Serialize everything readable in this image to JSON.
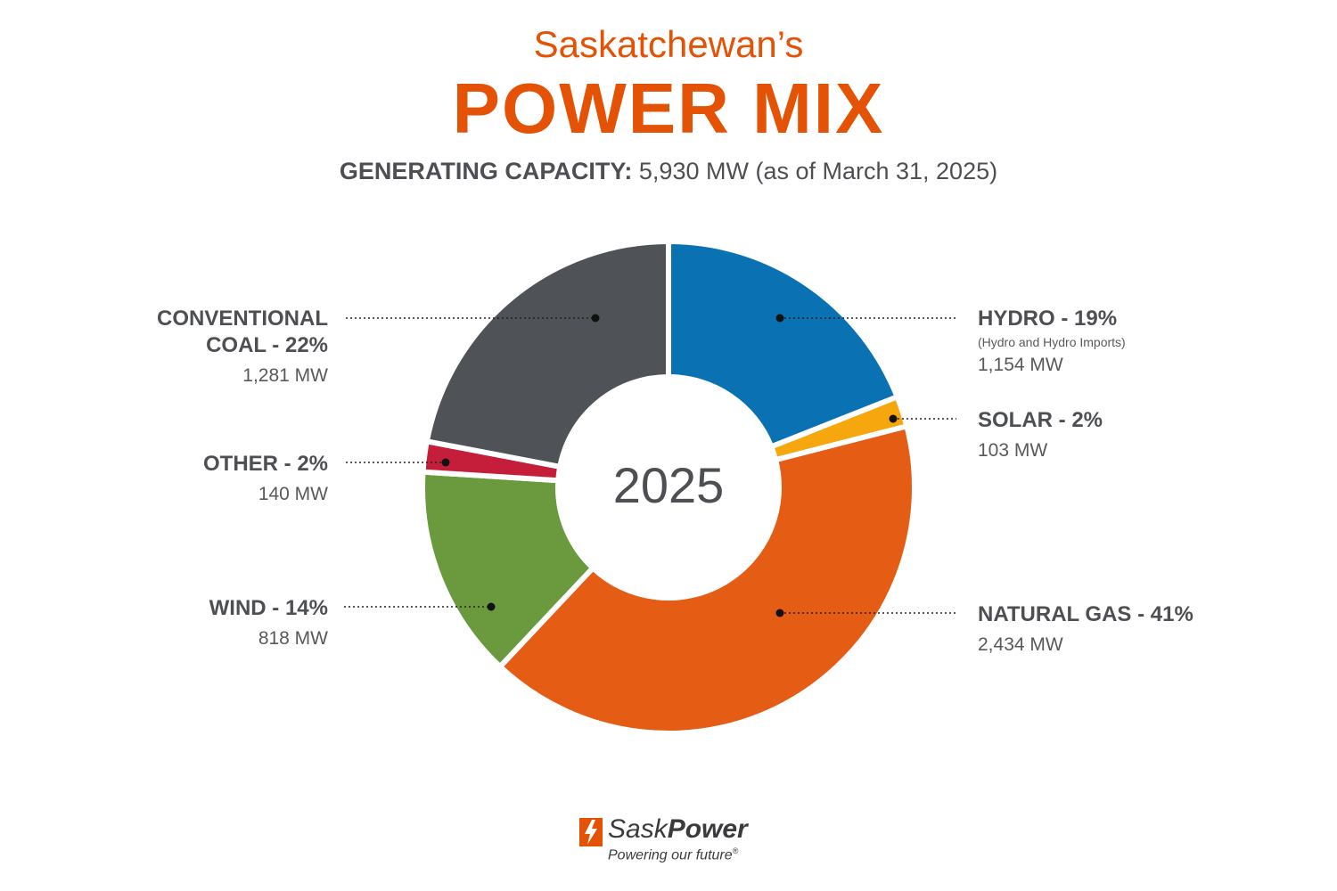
{
  "header": {
    "title_small": "Saskatchewan’s",
    "title_big": "POWER MIX",
    "subtitle_bold": "GENERATING CAPACITY:",
    "subtitle_rest": " 5,930 MW (as of March 31, 2025)"
  },
  "center_label": "2025",
  "labels": {
    "coal": {
      "name1": "CONVENTIONAL",
      "name2": "COAL - 22%",
      "mw": "1,281 MW"
    },
    "other": {
      "name": "OTHER - 2%",
      "mw": "140 MW"
    },
    "wind": {
      "name": "WIND - 14%",
      "mw": "818 MW"
    },
    "hydro": {
      "name": "HYDRO - 19%",
      "note": "(Hydro and Hydro Imports)",
      "mw": "1,154 MW"
    },
    "solar": {
      "name": "SOLAR - 2%",
      "mw": "103 MW"
    },
    "gas": {
      "name": "NATURAL GAS - 41%",
      "mw": "2,434 MW"
    }
  },
  "logo": {
    "brand_light": "Sask",
    "brand_bold": "Power",
    "tagline": "Powering our future",
    "trademark": "®"
  },
  "chart_data": {
    "type": "pie",
    "subtype": "donut",
    "title": "Saskatchewan’s POWER MIX",
    "subtitle": "GENERATING CAPACITY: 5,930 MW (as of March 31, 2025)",
    "center_text": "2025",
    "unit": "MW",
    "slices": [
      {
        "label": "HYDRO",
        "percent": 19,
        "value": 1154,
        "color": "#0a72b3"
      },
      {
        "label": "SOLAR",
        "percent": 2,
        "value": 103,
        "color": "#f5a70d"
      },
      {
        "label": "NATURAL GAS",
        "percent": 41,
        "value": 2434,
        "color": "#e55c14"
      },
      {
        "label": "WIND",
        "percent": 14,
        "value": 818,
        "color": "#6a9a3d"
      },
      {
        "label": "OTHER",
        "percent": 2,
        "value": 140,
        "color": "#c41e3a"
      },
      {
        "label": "CONVENTIONAL COAL",
        "percent": 22,
        "value": 1281,
        "color": "#4f5256"
      }
    ],
    "start": "12 o'clock",
    "direction": "clockwise",
    "legend": "none"
  }
}
